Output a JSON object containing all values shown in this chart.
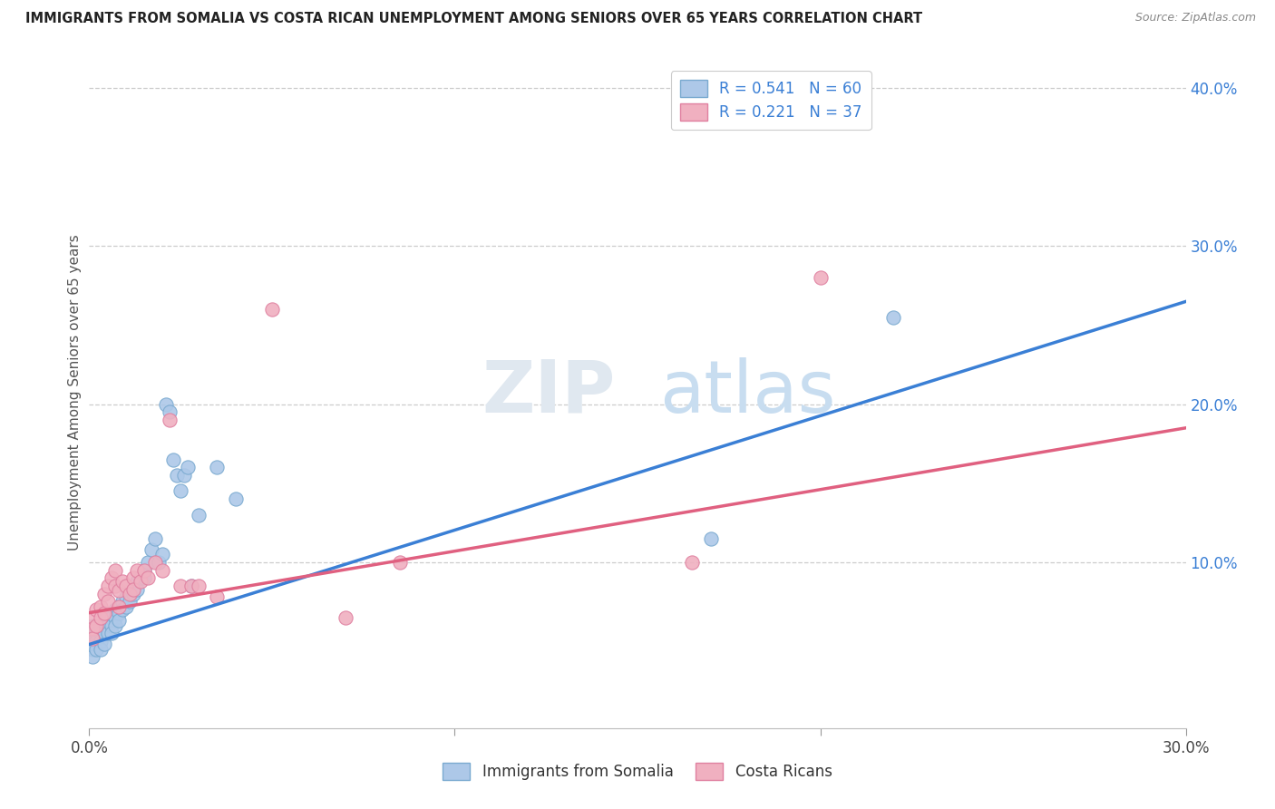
{
  "title": "IMMIGRANTS FROM SOMALIA VS COSTA RICAN UNEMPLOYMENT AMONG SENIORS OVER 65 YEARS CORRELATION CHART",
  "source": "Source: ZipAtlas.com",
  "ylabel": "Unemployment Among Seniors over 65 years",
  "xlim": [
    0.0,
    0.3
  ],
  "ylim": [
    -0.005,
    0.42
  ],
  "series1_color": "#adc8e8",
  "series1_edge": "#7aaad0",
  "series2_color": "#f0b0c0",
  "series2_edge": "#e080a0",
  "line1_color": "#3a7fd5",
  "line2_color": "#e06080",
  "legend_label1": "Immigrants from Somalia",
  "legend_label2": "Costa Ricans",
  "R1": "0.541",
  "N1": "60",
  "R2": "0.221",
  "N2": "37",
  "line1_x0": 0.0,
  "line1_y0": 0.048,
  "line1_x1": 0.3,
  "line1_y1": 0.265,
  "line2_x0": 0.0,
  "line2_y0": 0.068,
  "line2_x1": 0.3,
  "line2_y1": 0.185,
  "scatter1_x": [
    0.001,
    0.001,
    0.001,
    0.001,
    0.001,
    0.001,
    0.002,
    0.002,
    0.002,
    0.002,
    0.003,
    0.003,
    0.003,
    0.003,
    0.004,
    0.004,
    0.004,
    0.005,
    0.005,
    0.005,
    0.006,
    0.006,
    0.006,
    0.007,
    0.007,
    0.007,
    0.008,
    0.008,
    0.008,
    0.009,
    0.009,
    0.01,
    0.01,
    0.011,
    0.011,
    0.012,
    0.012,
    0.013,
    0.013,
    0.014,
    0.015,
    0.015,
    0.016,
    0.017,
    0.018,
    0.019,
    0.02,
    0.021,
    0.022,
    0.023,
    0.024,
    0.025,
    0.026,
    0.027,
    0.028,
    0.03,
    0.035,
    0.04,
    0.17,
    0.22
  ],
  "scatter1_y": [
    0.06,
    0.055,
    0.05,
    0.048,
    0.045,
    0.04,
    0.058,
    0.055,
    0.05,
    0.045,
    0.06,
    0.055,
    0.05,
    0.045,
    0.06,
    0.055,
    0.048,
    0.065,
    0.06,
    0.055,
    0.065,
    0.06,
    0.055,
    0.07,
    0.065,
    0.06,
    0.072,
    0.068,
    0.063,
    0.075,
    0.07,
    0.078,
    0.072,
    0.08,
    0.075,
    0.085,
    0.08,
    0.088,
    0.083,
    0.09,
    0.095,
    0.09,
    0.1,
    0.108,
    0.115,
    0.1,
    0.105,
    0.2,
    0.195,
    0.165,
    0.155,
    0.145,
    0.155,
    0.16,
    0.085,
    0.13,
    0.16,
    0.14,
    0.115,
    0.255
  ],
  "scatter2_x": [
    0.001,
    0.001,
    0.001,
    0.002,
    0.002,
    0.003,
    0.003,
    0.004,
    0.004,
    0.005,
    0.005,
    0.006,
    0.007,
    0.007,
    0.008,
    0.008,
    0.009,
    0.01,
    0.011,
    0.012,
    0.012,
    0.013,
    0.014,
    0.015,
    0.016,
    0.018,
    0.02,
    0.022,
    0.025,
    0.028,
    0.03,
    0.035,
    0.05,
    0.07,
    0.085,
    0.165,
    0.2
  ],
  "scatter2_y": [
    0.065,
    0.058,
    0.052,
    0.07,
    0.06,
    0.072,
    0.065,
    0.08,
    0.068,
    0.085,
    0.075,
    0.09,
    0.095,
    0.085,
    0.082,
    0.072,
    0.088,
    0.085,
    0.08,
    0.09,
    0.083,
    0.095,
    0.088,
    0.095,
    0.09,
    0.1,
    0.095,
    0.19,
    0.085,
    0.085,
    0.085,
    0.078,
    0.26,
    0.065,
    0.1,
    0.1,
    0.28
  ]
}
